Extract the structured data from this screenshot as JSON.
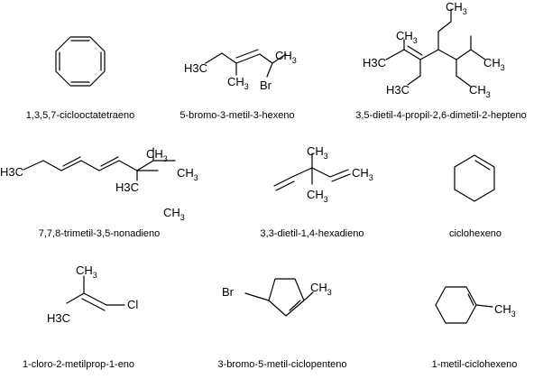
{
  "molecules": [
    {
      "name": "1,3,5,7-ciclooctatetraeno"
    },
    {
      "name": "5-bromo-3-metil-3-hexeno",
      "labels": {
        "h3c": "H3C",
        "ch3": "CH3",
        "ch3b": "CH3",
        "br": "Br"
      }
    },
    {
      "name": "3,5-dietil-4-propil-2,6-dimetil-2-hepteno",
      "labels": {
        "ch3_top": "CH3",
        "ch3_a": "CH3",
        "h3c_left": "H3C",
        "ch3_right": "CH3",
        "h3c_bottom": "H3C",
        "ch3_bottom_right": "CH3"
      }
    },
    {
      "name": "7,7,8-trimetil-3,5-nonadieno",
      "labels": {
        "h3c": "H3C",
        "ch3_top": "CH3",
        "ch3_right": "CH3",
        "h3c_mid": "H3C",
        "ch3_bottom": "CH3"
      }
    },
    {
      "name": "3,3-dietil-1,4-hexadieno",
      "labels": {
        "ch3_top": "CH3",
        "ch3_right": "CH3",
        "ch3_bottom": "CH3"
      }
    },
    {
      "name": "ciclohexeno"
    },
    {
      "name": "1-cloro-2-metilprop-1-eno",
      "labels": {
        "ch3_top": "CH3",
        "h3c": "H3C",
        "cl": "Cl"
      }
    },
    {
      "name": "3-bromo-5-metil-ciclopenteno",
      "labels": {
        "br": "Br",
        "ch3": "CH3"
      }
    },
    {
      "name": "1-metil-ciclohexeno",
      "labels": {
        "ch3": "CH3"
      }
    }
  ]
}
